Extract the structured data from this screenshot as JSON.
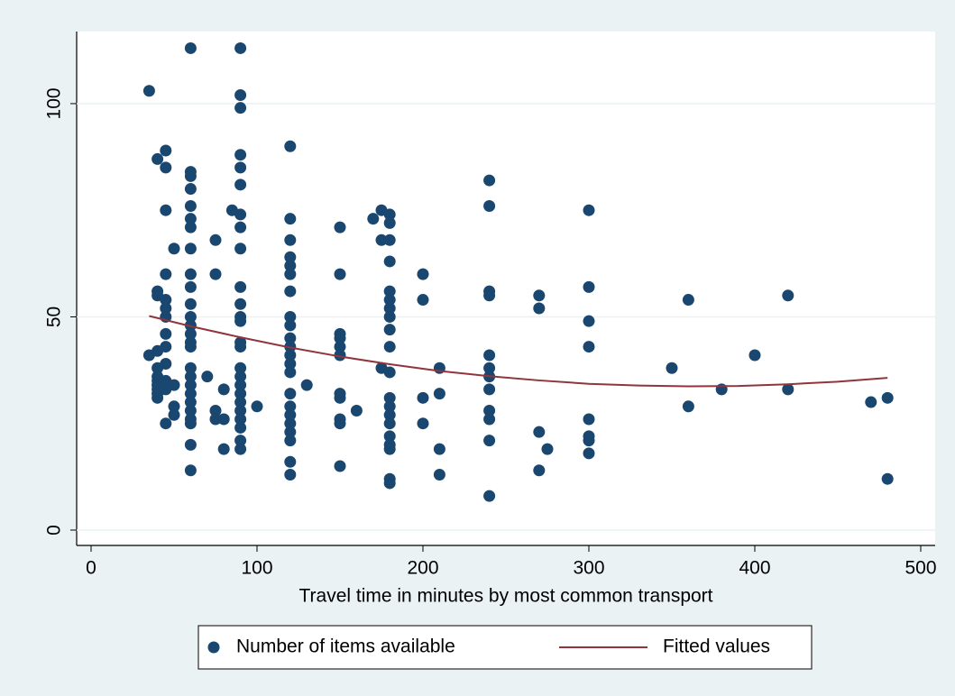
{
  "chart_data": {
    "type": "scatter",
    "xlabel": "Travel time in minutes by most common transport",
    "xlim": [
      -8.7,
      508.7
    ],
    "ylim": [
      -3.6,
      116.9
    ],
    "xticks": [
      0,
      100,
      200,
      300,
      400,
      500
    ],
    "yticks": [
      0,
      50,
      100
    ],
    "grid": true,
    "legend": "bottom",
    "series": [
      {
        "name": "Number of items available",
        "type": "scatter",
        "color": "#1a476f",
        "x": [
          35,
          35,
          40,
          40,
          40,
          40,
          40,
          40,
          40,
          40,
          40,
          40,
          40,
          45,
          45,
          45,
          45,
          45,
          45,
          45,
          45,
          45,
          45,
          45,
          45,
          45,
          45,
          50,
          50,
          50,
          50,
          60,
          60,
          60,
          60,
          60,
          60,
          60,
          60,
          60,
          60,
          60,
          60,
          60,
          60,
          60,
          60,
          60,
          60,
          60,
          60,
          60,
          60,
          60,
          60,
          60,
          60,
          70,
          75,
          75,
          75,
          75,
          80,
          80,
          80,
          85,
          90,
          90,
          90,
          90,
          90,
          90,
          90,
          90,
          90,
          90,
          90,
          90,
          90,
          90,
          90,
          90,
          90,
          90,
          90,
          90,
          90,
          90,
          90,
          90,
          90,
          100,
          120,
          120,
          120,
          120,
          120,
          120,
          120,
          120,
          120,
          120,
          120,
          120,
          120,
          120,
          120,
          120,
          120,
          120,
          120,
          120,
          120,
          120,
          130,
          150,
          150,
          150,
          150,
          150,
          150,
          150,
          150,
          150,
          150,
          150,
          160,
          170,
          175,
          175,
          175,
          180,
          180,
          180,
          180,
          180,
          180,
          180,
          180,
          180,
          180,
          180,
          180,
          180,
          180,
          180,
          180,
          180,
          180,
          180,
          180,
          200,
          200,
          200,
          200,
          210,
          210,
          210,
          210,
          240,
          240,
          240,
          240,
          240,
          240,
          240,
          240,
          240,
          240,
          240,
          240,
          270,
          270,
          270,
          270,
          275,
          300,
          300,
          300,
          300,
          300,
          300,
          300,
          300,
          350,
          360,
          360,
          380,
          400,
          420,
          420,
          470,
          480,
          480
        ],
        "values": [
          103,
          41,
          87,
          56,
          55,
          42,
          38,
          36,
          35,
          34,
          33,
          32,
          31,
          89,
          85,
          75,
          60,
          54,
          52,
          50,
          46,
          43,
          39,
          35,
          34,
          33,
          25,
          66,
          34,
          29,
          27,
          113,
          84,
          83,
          80,
          76,
          73,
          71,
          66,
          60,
          57,
          53,
          50,
          48,
          46,
          44,
          43,
          38,
          36,
          34,
          32,
          30,
          28,
          26,
          25,
          20,
          14,
          36,
          68,
          60,
          28,
          26,
          33,
          26,
          19,
          75,
          113,
          102,
          99,
          88,
          85,
          81,
          74,
          71,
          66,
          57,
          53,
          50,
          49,
          44,
          43,
          38,
          36,
          34,
          32,
          30,
          28,
          26,
          24,
          21,
          19,
          29,
          90,
          73,
          68,
          64,
          62,
          60,
          56,
          50,
          48,
          45,
          43,
          41,
          39,
          37,
          32,
          29,
          27,
          25,
          23,
          21,
          16,
          13,
          34,
          71,
          60,
          46,
          45,
          43,
          41,
          32,
          31,
          26,
          25,
          15,
          28,
          73,
          75,
          68,
          38,
          74,
          72,
          68,
          63,
          56,
          54,
          52,
          50,
          47,
          43,
          37,
          31,
          29,
          27,
          25,
          22,
          20,
          19,
          12,
          11,
          60,
          54,
          31,
          25,
          38,
          32,
          19,
          13,
          82,
          76,
          56,
          55,
          41,
          38,
          36,
          33,
          28,
          26,
          21,
          8,
          55,
          52,
          23,
          14,
          19,
          75,
          57,
          49,
          43,
          26,
          22,
          21,
          18,
          38,
          54,
          29,
          33,
          41,
          55,
          33,
          30,
          31,
          12
        ]
      },
      {
        "name": "Fitted values",
        "type": "line",
        "color": "#90353b",
        "x": [
          35,
          60,
          90,
          120,
          150,
          180,
          210,
          240,
          270,
          300,
          330,
          360,
          390,
          420,
          450,
          480
        ],
        "values": [
          50.2,
          47.8,
          45.2,
          42.8,
          40.7,
          38.9,
          37.3,
          36.1,
          35.1,
          34.3,
          33.9,
          33.7,
          33.8,
          34.2,
          34.8,
          35.7
        ]
      }
    ]
  }
}
